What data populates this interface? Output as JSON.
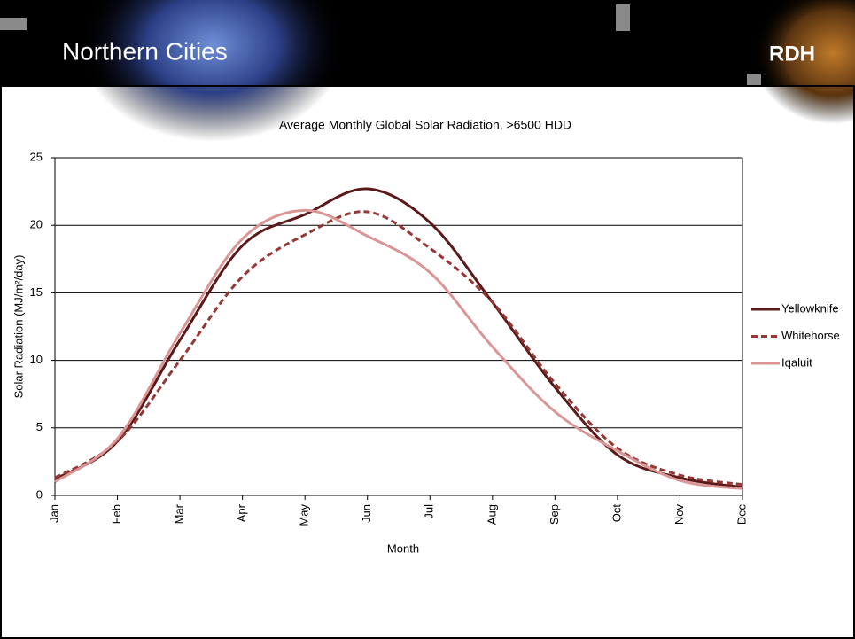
{
  "header": {
    "title": "Northern Cities",
    "logo": "RDH"
  },
  "chart_data": {
    "type": "line",
    "title": "Average Monthly Global Solar Radiation, >6500 HDD",
    "x_label": "Month",
    "y_label": "Solar Radiation (MJ/m²/day)",
    "categories": [
      "Jan",
      "Feb",
      "Mar",
      "Apr",
      "May",
      "Jun",
      "Jul",
      "Aug",
      "Sep",
      "Oct",
      "Nov",
      "Dec"
    ],
    "series": [
      {
        "name": "Yellowknife",
        "color": "#5b1a1a",
        "dash": false,
        "values": [
          1.2,
          4.0,
          11.5,
          18.5,
          20.8,
          22.7,
          20.2,
          14.3,
          8.0,
          3.0,
          1.3,
          0.6
        ]
      },
      {
        "name": "Whitehorse",
        "color": "#953735",
        "dash": true,
        "values": [
          1.3,
          4.0,
          10.0,
          16.2,
          19.3,
          21.0,
          18.3,
          14.3,
          8.3,
          3.5,
          1.5,
          0.8
        ]
      },
      {
        "name": "Iqaluit",
        "color": "#d99694",
        "dash": false,
        "values": [
          1.0,
          4.2,
          12.0,
          19.0,
          21.1,
          19.2,
          16.5,
          11.0,
          6.2,
          3.3,
          1.1,
          0.5
        ]
      }
    ],
    "ylim": [
      0,
      25
    ],
    "yticks": [
      0,
      5,
      10,
      15,
      20,
      25
    ],
    "grid": true,
    "legend": "right"
  }
}
